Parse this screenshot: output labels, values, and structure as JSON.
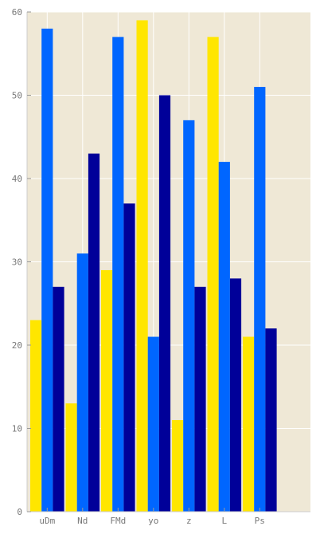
{
  "chart_data": {
    "type": "bar",
    "categories": [
      "uDm",
      "Nd",
      "FMd",
      "yo",
      "z",
      "L",
      "Ps"
    ],
    "series": [
      {
        "values": [
          23,
          13,
          29,
          59,
          11,
          57,
          21
        ],
        "color": "#ffe600"
      },
      {
        "values": [
          58,
          31,
          57,
          21,
          47,
          42,
          51
        ],
        "color": "#0066ff"
      },
      {
        "values": [
          27,
          43,
          37,
          50,
          27,
          28,
          22
        ],
        "color": "#000099"
      }
    ],
    "ylim": [
      0,
      60
    ],
    "yticks": [
      0,
      10,
      20,
      30,
      40,
      50,
      60
    ],
    "grid": true,
    "legend": "none",
    "background": "#efe8d6",
    "grid_color": "#ffffff",
    "axis_color": "#cccccc"
  }
}
